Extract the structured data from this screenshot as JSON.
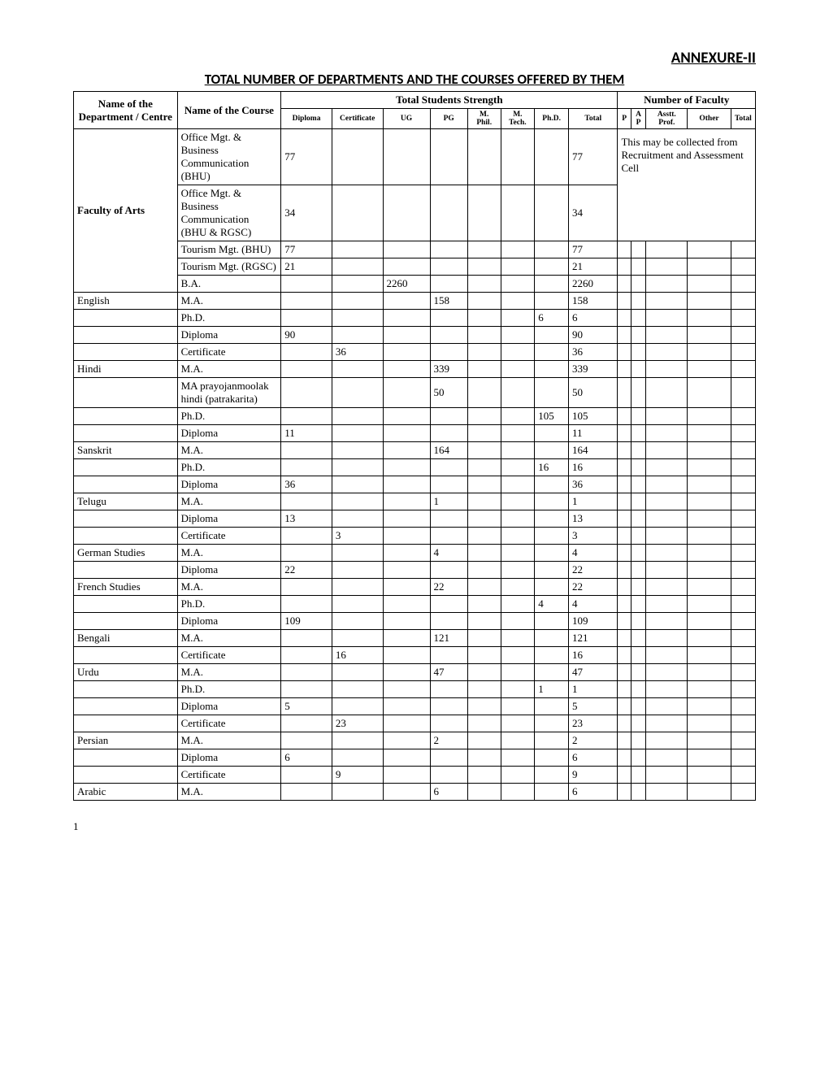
{
  "header": {
    "annexure": "ANNEXURE-II",
    "title": "TOTAL NUMBER OF DEPARTMENTS AND THE COURSES OFFERED BY THEM"
  },
  "table_headers": {
    "dept": "Name of the Department / Centre",
    "course": "Name of the Course",
    "students_group": "Total Students Strength",
    "faculty_group": "Number of Faculty",
    "diploma": "Diploma",
    "certificate": "Certificate",
    "ug": "UG",
    "pg": "PG",
    "mphil": "M. Phil.",
    "mtech": "M. Tech.",
    "phd": "Ph.D.",
    "total": "Total",
    "p": "P",
    "ap": "AP",
    "asst": "Asstt. Prof.",
    "other": "Other",
    "tot": "Total"
  },
  "note_text": "This may be collected from Recruitment and Assessment Cell",
  "rows": [
    {
      "dept": "Faculty of Arts",
      "dept_bold": true,
      "dept_rowspan": 5,
      "course": "Office Mgt. & Business Communication (BHU)",
      "diploma": "77",
      "cert": "",
      "ug": "",
      "pg": "",
      "mphil": "",
      "mtech": "",
      "phd": "",
      "total": "77",
      "faculty_note": true,
      "faculty_note_rowspan": 2
    },
    {
      "course": "Office Mgt. & Business Communication (BHU & RGSC)",
      "diploma": "34",
      "cert": "",
      "ug": "",
      "pg": "",
      "mphil": "",
      "mtech": "",
      "phd": "",
      "total": "34"
    },
    {
      "course": "Tourism Mgt. (BHU)",
      "diploma": "77",
      "cert": "",
      "ug": "",
      "pg": "",
      "mphil": "",
      "mtech": "",
      "phd": "",
      "total": "77",
      "p": "",
      "ap": "",
      "asst": "",
      "other": "",
      "tot": ""
    },
    {
      "course": "Tourism Mgt. (RGSC)",
      "diploma": "21",
      "cert": "",
      "ug": "",
      "pg": "",
      "mphil": "",
      "mtech": "",
      "phd": "",
      "total": "21",
      "p": "",
      "ap": "",
      "asst": "",
      "other": "",
      "tot": ""
    },
    {
      "course": "B.A.",
      "diploma": "",
      "cert": "",
      "ug": "2260",
      "pg": "",
      "mphil": "",
      "mtech": "",
      "phd": "",
      "total": "2260",
      "p": "",
      "ap": "",
      "asst": "",
      "other": "",
      "tot": ""
    },
    {
      "dept": "English",
      "dept_rowspan": 1,
      "course": "M.A.",
      "diploma": "",
      "cert": "",
      "ug": "",
      "pg": "158",
      "mphil": "",
      "mtech": "",
      "phd": "",
      "total": "158",
      "p": "",
      "ap": "",
      "asst": "",
      "other": "",
      "tot": ""
    },
    {
      "dept": "",
      "dept_rowspan": 1,
      "course": "Ph.D.",
      "diploma": "",
      "cert": "",
      "ug": "",
      "pg": "",
      "mphil": "",
      "mtech": "",
      "phd": "6",
      "total": "6",
      "p": "",
      "ap": "",
      "asst": "",
      "other": "",
      "tot": ""
    },
    {
      "dept": "",
      "dept_rowspan": 1,
      "course": "Diploma",
      "diploma": "90",
      "cert": "",
      "ug": "",
      "pg": "",
      "mphil": "",
      "mtech": "",
      "phd": "",
      "total": "90",
      "p": "",
      "ap": "",
      "asst": "",
      "other": "",
      "tot": ""
    },
    {
      "dept": "",
      "dept_rowspan": 1,
      "course": "Certificate",
      "diploma": "",
      "cert": "36",
      "ug": "",
      "pg": "",
      "mphil": "",
      "mtech": "",
      "phd": "",
      "total": "36",
      "p": "",
      "ap": "",
      "asst": "",
      "other": "",
      "tot": ""
    },
    {
      "dept": "Hindi",
      "dept_rowspan": 1,
      "course": "M.A.",
      "diploma": "",
      "cert": "",
      "ug": "",
      "pg": "339",
      "mphil": "",
      "mtech": "",
      "phd": "",
      "total": "339",
      "p": "",
      "ap": "",
      "asst": "",
      "other": "",
      "tot": ""
    },
    {
      "dept": "",
      "dept_rowspan": 1,
      "course": "MA prayojanmoolak hindi (patrakarita)",
      "diploma": "",
      "cert": "",
      "ug": "",
      "pg": "50",
      "mphil": "",
      "mtech": "",
      "phd": "",
      "total": "50",
      "p": "",
      "ap": "",
      "asst": "",
      "other": "",
      "tot": ""
    },
    {
      "dept": "",
      "dept_rowspan": 1,
      "course": "Ph.D.",
      "diploma": "",
      "cert": "",
      "ug": "",
      "pg": "",
      "mphil": "",
      "mtech": "",
      "phd": "105",
      "total": "105",
      "p": "",
      "ap": "",
      "asst": "",
      "other": "",
      "tot": ""
    },
    {
      "dept": "",
      "dept_rowspan": 1,
      "course": "Diploma",
      "diploma": "11",
      "cert": "",
      "ug": "",
      "pg": "",
      "mphil": "",
      "mtech": "",
      "phd": "",
      "total": "11",
      "p": "",
      "ap": "",
      "asst": "",
      "other": "",
      "tot": ""
    },
    {
      "dept": "Sanskrit",
      "dept_rowspan": 1,
      "course": "M.A.",
      "diploma": "",
      "cert": "",
      "ug": "",
      "pg": "164",
      "mphil": "",
      "mtech": "",
      "phd": "",
      "total": "164",
      "p": "",
      "ap": "",
      "asst": "",
      "other": "",
      "tot": ""
    },
    {
      "dept": "",
      "dept_rowspan": 1,
      "course": "Ph.D.",
      "diploma": "",
      "cert": "",
      "ug": "",
      "pg": "",
      "mphil": "",
      "mtech": "",
      "phd": "16",
      "total": "16",
      "p": "",
      "ap": "",
      "asst": "",
      "other": "",
      "tot": ""
    },
    {
      "dept": "",
      "dept_rowspan": 1,
      "course": "Diploma",
      "diploma": "36",
      "cert": "",
      "ug": "",
      "pg": "",
      "mphil": "",
      "mtech": "",
      "phd": "",
      "total": "36",
      "p": "",
      "ap": "",
      "asst": "",
      "other": "",
      "tot": ""
    },
    {
      "dept": "Telugu",
      "dept_rowspan": 1,
      "course": "M.A.",
      "diploma": "",
      "cert": "",
      "ug": "",
      "pg": "1",
      "mphil": "",
      "mtech": "",
      "phd": "",
      "total": "1",
      "p": "",
      "ap": "",
      "asst": "",
      "other": "",
      "tot": ""
    },
    {
      "dept": "",
      "dept_rowspan": 1,
      "course": "Diploma",
      "diploma": "13",
      "cert": "",
      "ug": "",
      "pg": "",
      "mphil": "",
      "mtech": "",
      "phd": "",
      "total": "13",
      "p": "",
      "ap": "",
      "asst": "",
      "other": "",
      "tot": ""
    },
    {
      "dept": "",
      "dept_rowspan": 1,
      "course": "Certificate",
      "diploma": "",
      "cert": "3",
      "ug": "",
      "pg": "",
      "mphil": "",
      "mtech": "",
      "phd": "",
      "total": "3",
      "p": "",
      "ap": "",
      "asst": "",
      "other": "",
      "tot": ""
    },
    {
      "dept": "German Studies",
      "dept_rowspan": 1,
      "course": "M.A.",
      "diploma": "",
      "cert": "",
      "ug": "",
      "pg": "4",
      "mphil": "",
      "mtech": "",
      "phd": "",
      "total": "4",
      "p": "",
      "ap": "",
      "asst": "",
      "other": "",
      "tot": ""
    },
    {
      "dept": "",
      "dept_rowspan": 1,
      "course": "Diploma",
      "diploma": "22",
      "cert": "",
      "ug": "",
      "pg": "",
      "mphil": "",
      "mtech": "",
      "phd": "",
      "total": "22",
      "p": "",
      "ap": "",
      "asst": "",
      "other": "",
      "tot": ""
    },
    {
      "dept": "French Studies",
      "dept_rowspan": 1,
      "course": "M.A.",
      "diploma": "",
      "cert": "",
      "ug": "",
      "pg": "22",
      "mphil": "",
      "mtech": "",
      "phd": "",
      "total": "22",
      "p": "",
      "ap": "",
      "asst": "",
      "other": "",
      "tot": ""
    },
    {
      "dept": "",
      "dept_rowspan": 1,
      "course": "Ph.D.",
      "diploma": "",
      "cert": "",
      "ug": "",
      "pg": "",
      "mphil": "",
      "mtech": "",
      "phd": "4",
      "total": "4",
      "p": "",
      "ap": "",
      "asst": "",
      "other": "",
      "tot": ""
    },
    {
      "dept": "",
      "dept_rowspan": 1,
      "course": "Diploma",
      "diploma": "109",
      "cert": "",
      "ug": "",
      "pg": "",
      "mphil": "",
      "mtech": "",
      "phd": "",
      "total": "109",
      "p": "",
      "ap": "",
      "asst": "",
      "other": "",
      "tot": ""
    },
    {
      "dept": "Bengali",
      "dept_rowspan": 1,
      "course": "M.A.",
      "diploma": "",
      "cert": "",
      "ug": "",
      "pg": "121",
      "mphil": "",
      "mtech": "",
      "phd": "",
      "total": "121",
      "p": "",
      "ap": "",
      "asst": "",
      "other": "",
      "tot": ""
    },
    {
      "dept": "",
      "dept_rowspan": 1,
      "course": "Certificate",
      "diploma": "",
      "cert": "16",
      "ug": "",
      "pg": "",
      "mphil": "",
      "mtech": "",
      "phd": "",
      "total": "16",
      "p": "",
      "ap": "",
      "asst": "",
      "other": "",
      "tot": ""
    },
    {
      "dept": "Urdu",
      "dept_rowspan": 1,
      "course": "M.A.",
      "diploma": "",
      "cert": "",
      "ug": "",
      "pg": "47",
      "mphil": "",
      "mtech": "",
      "phd": "",
      "total": "47",
      "p": "",
      "ap": "",
      "asst": "",
      "other": "",
      "tot": ""
    },
    {
      "dept": "",
      "dept_rowspan": 1,
      "course": "Ph.D.",
      "diploma": "",
      "cert": "",
      "ug": "",
      "pg": "",
      "mphil": "",
      "mtech": "",
      "phd": "1",
      "total": "1",
      "p": "",
      "ap": "",
      "asst": "",
      "other": "",
      "tot": ""
    },
    {
      "dept": "",
      "dept_rowspan": 1,
      "course": "Diploma",
      "diploma": "5",
      "cert": "",
      "ug": "",
      "pg": "",
      "mphil": "",
      "mtech": "",
      "phd": "",
      "total": "5",
      "p": "",
      "ap": "",
      "asst": "",
      "other": "",
      "tot": ""
    },
    {
      "dept": "",
      "dept_rowspan": 1,
      "course": "Certificate",
      "diploma": "",
      "cert": "23",
      "ug": "",
      "pg": "",
      "mphil": "",
      "mtech": "",
      "phd": "",
      "total": "23",
      "p": "",
      "ap": "",
      "asst": "",
      "other": "",
      "tot": ""
    },
    {
      "dept": "Persian",
      "dept_rowspan": 1,
      "course": "M.A.",
      "diploma": "",
      "cert": "",
      "ug": "",
      "pg": "2",
      "mphil": "",
      "mtech": "",
      "phd": "",
      "total": "2",
      "p": "",
      "ap": "",
      "asst": "",
      "other": "",
      "tot": ""
    },
    {
      "dept": "",
      "dept_rowspan": 1,
      "course": "Diploma",
      "diploma": "6",
      "cert": "",
      "ug": "",
      "pg": "",
      "mphil": "",
      "mtech": "",
      "phd": "",
      "total": "6",
      "p": "",
      "ap": "",
      "asst": "",
      "other": "",
      "tot": ""
    },
    {
      "dept": "",
      "dept_rowspan": 1,
      "course": "Certificate",
      "diploma": "",
      "cert": "9",
      "ug": "",
      "pg": "",
      "mphil": "",
      "mtech": "",
      "phd": "",
      "total": "9",
      "p": "",
      "ap": "",
      "asst": "",
      "other": "",
      "tot": ""
    },
    {
      "dept": "Arabic",
      "dept_rowspan": 1,
      "course": "M.A.",
      "diploma": "",
      "cert": "",
      "ug": "",
      "pg": "6",
      "mphil": "",
      "mtech": "",
      "phd": "",
      "total": "6",
      "p": "",
      "ap": "",
      "asst": "",
      "other": "",
      "tot": ""
    }
  ],
  "pagenum": "1"
}
